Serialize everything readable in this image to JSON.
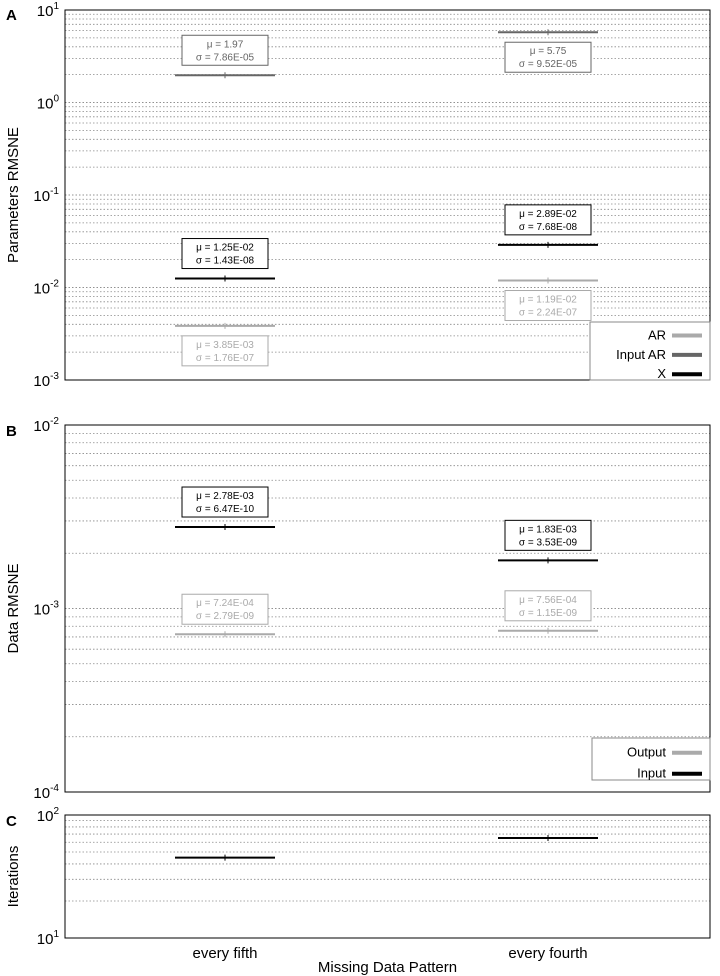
{
  "colors": {
    "AR": "#aaaaaa",
    "Input AR": "#666666",
    "X": "#000000",
    "Output": "#aaaaaa",
    "Input": "#000000"
  },
  "chart_data": [
    {
      "panel": "A",
      "type": "scatter",
      "scale": "log",
      "ylabel": "Parameters RMSNE",
      "ylim": [
        0.001,
        10
      ],
      "y_ticks": [
        {
          "base": "10",
          "exp": "1"
        },
        {
          "base": "10",
          "exp": "0"
        },
        {
          "base": "10",
          "exp": "-1"
        },
        {
          "base": "10",
          "exp": "-2"
        },
        {
          "base": "10",
          "exp": "-3"
        }
      ],
      "categories": [
        "every fifth",
        "every fourth"
      ],
      "grid": true,
      "legend": {
        "placement": "bottom-right",
        "entries": [
          "AR",
          "Input AR",
          "X"
        ]
      },
      "series": [
        {
          "name": "AR",
          "values": [
            0.00385,
            0.0119
          ],
          "annotations": [
            {
              "mu": "μ = 3.85E-03",
              "sigma": "σ = 1.76E-07"
            },
            {
              "mu": "μ = 1.19E-02",
              "sigma": "σ = 2.24E-07"
            }
          ]
        },
        {
          "name": "Input AR",
          "values": [
            1.97,
            5.75
          ],
          "annotations": [
            {
              "mu": "μ = 1.97",
              "sigma": "σ = 7.86E-05"
            },
            {
              "mu": "μ = 5.75",
              "sigma": "σ = 9.52E-05"
            }
          ]
        },
        {
          "name": "X",
          "values": [
            0.0125,
            0.0289
          ],
          "annotations": [
            {
              "mu": "μ = 1.25E-02",
              "sigma": "σ = 1.43E-08"
            },
            {
              "mu": "μ = 2.89E-02",
              "sigma": "σ = 7.68E-08"
            }
          ]
        }
      ]
    },
    {
      "panel": "B",
      "type": "scatter",
      "scale": "log",
      "ylabel": "Data RMSNE",
      "ylim": [
        0.0001,
        0.01
      ],
      "y_ticks": [
        {
          "base": "10",
          "exp": "-2"
        },
        {
          "base": "10",
          "exp": "-3"
        },
        {
          "base": "10",
          "exp": "-4"
        }
      ],
      "categories": [
        "every fifth",
        "every fourth"
      ],
      "grid": true,
      "legend": {
        "placement": "bottom-right",
        "entries": [
          "Output",
          "Input"
        ]
      },
      "series": [
        {
          "name": "Output",
          "values": [
            0.000724,
            0.000756
          ],
          "annotations": [
            {
              "mu": "μ = 7.24E-04",
              "sigma": "σ = 2.79E-09"
            },
            {
              "mu": "μ = 7.56E-04",
              "sigma": "σ = 1.15E-09"
            }
          ]
        },
        {
          "name": "Input",
          "values": [
            0.00278,
            0.00183
          ],
          "annotations": [
            {
              "mu": "μ = 2.78E-03",
              "sigma": "σ = 6.47E-10"
            },
            {
              "mu": "μ = 1.83E-03",
              "sigma": "σ = 3.53E-09"
            }
          ]
        }
      ]
    },
    {
      "panel": "C",
      "type": "scatter",
      "scale": "log",
      "ylabel": "Iterations",
      "ylim": [
        10,
        100
      ],
      "y_ticks": [
        {
          "base": "10",
          "exp": "2"
        },
        {
          "base": "10",
          "exp": "1"
        }
      ],
      "categories": [
        "every fifth",
        "every fourth"
      ],
      "xlabel": "Missing Data Pattern",
      "grid": true,
      "series": [
        {
          "name": "",
          "values": [
            45,
            65
          ]
        }
      ]
    }
  ]
}
